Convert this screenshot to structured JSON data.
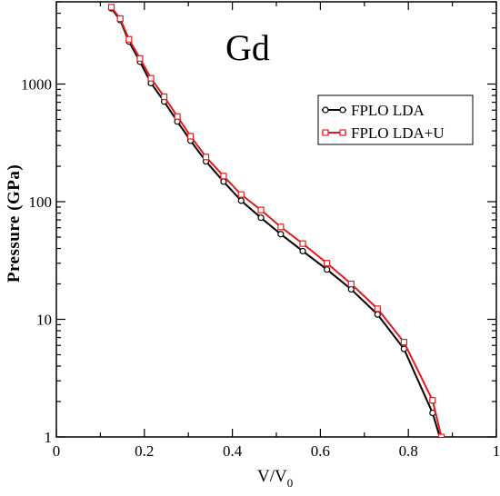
{
  "chart_data": {
    "type": "line",
    "annotation": "Gd",
    "xlabel_main": "V/V",
    "xlabel_sub": "0",
    "ylabel": "Pressure (GPa)",
    "xlim": [
      0,
      1
    ],
    "ylim": [
      1,
      5000
    ],
    "yscale": "log",
    "x_ticks": [
      "0",
      "0.2",
      "0.4",
      "0.6",
      "0.8",
      "1"
    ],
    "y_ticks": [
      "1",
      "10",
      "100",
      "1000"
    ],
    "legend_position": "top-right",
    "series": [
      {
        "name": "FPLO LDA",
        "color": "#000000",
        "marker": "circle",
        "x": [
          0.125,
          0.145,
          0.165,
          0.19,
          0.215,
          0.245,
          0.275,
          0.305,
          0.34,
          0.38,
          0.42,
          0.465,
          0.51,
          0.56,
          0.615,
          0.67,
          0.73,
          0.79,
          0.855,
          0.875
        ],
        "y": [
          4400,
          3500,
          2300,
          1550,
          1020,
          710,
          480,
          330,
          220,
          148,
          102,
          73,
          53,
          38,
          26.5,
          18,
          11,
          5.6,
          1.6,
          0.9
        ]
      },
      {
        "name": "FPLO LDA+U",
        "color": "#e41a1c",
        "marker": "square",
        "x": [
          0.125,
          0.145,
          0.165,
          0.19,
          0.215,
          0.245,
          0.275,
          0.305,
          0.34,
          0.38,
          0.42,
          0.465,
          0.51,
          0.56,
          0.615,
          0.67,
          0.73,
          0.79,
          0.855,
          0.875
        ],
        "y": [
          4500,
          3600,
          2400,
          1650,
          1120,
          780,
          530,
          360,
          240,
          165,
          115,
          85,
          61,
          44,
          30,
          20,
          12.3,
          6.4,
          2.05,
          1.0
        ]
      }
    ]
  }
}
